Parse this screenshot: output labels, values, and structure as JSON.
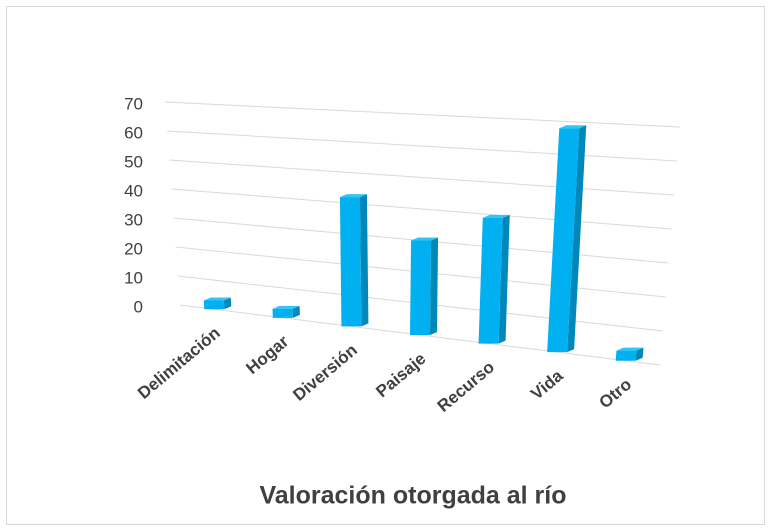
{
  "chart_data": {
    "type": "bar3d",
    "title": "Valoración otorgada al río",
    "categories": [
      "Delimitación",
      "Hogar",
      "Diversión",
      "Paisaje",
      "Recurso",
      "Vida",
      "Otro"
    ],
    "values": [
      3,
      3,
      42,
      30,
      39,
      68,
      3
    ],
    "color": "#00b0f0",
    "ylim": [
      0,
      70
    ],
    "yticks": [
      0,
      10,
      20,
      30,
      40,
      50,
      60,
      70
    ],
    "grid": true
  }
}
